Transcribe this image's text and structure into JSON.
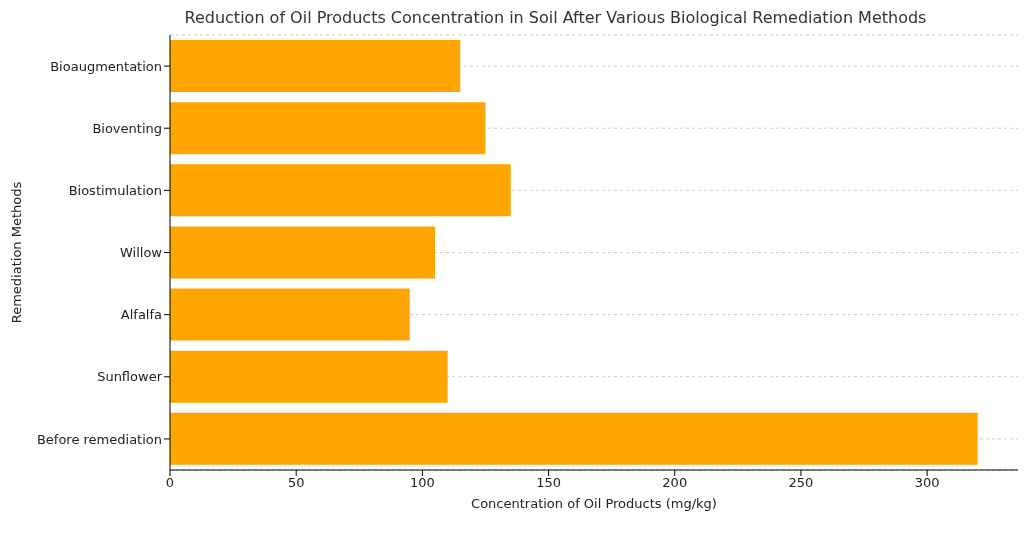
{
  "chart_data": {
    "type": "bar",
    "orientation": "horizontal",
    "title": "Reduction of Oil Products Concentration in Soil After Various Biological Remediation Methods",
    "xlabel": "Concentration of Oil Products (mg/kg)",
    "ylabel": "Remediation Methods",
    "categories": [
      "Bioaugmentation",
      "Bioventing",
      "Biostimulation",
      "Willow",
      "Alfalfa",
      "Sunflower",
      "Before remediation"
    ],
    "values": [
      115,
      125,
      135,
      105,
      95,
      110,
      320
    ],
    "color": "#ffa500",
    "xlim": [
      0,
      336
    ],
    "xticks": [
      0,
      50,
      100,
      150,
      200,
      250,
      300
    ],
    "grid": "y"
  }
}
